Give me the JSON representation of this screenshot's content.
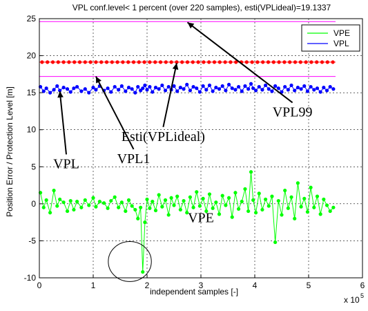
{
  "chart_data": {
    "type": "line",
    "title": "VPL conf.level< 1 percent (over 220 samples), esti(VPLideal)=19.1337",
    "xlabel": "independent samples [-]",
    "ylabel": "Position Error / Protection Level [m]",
    "x_exponent_label": "x 10",
    "x_exponent_power": "5",
    "xlim": [
      0,
      6
    ],
    "ylim": [
      -10,
      25
    ],
    "x_ticks": [
      "0",
      "1",
      "2",
      "3",
      "4",
      "5",
      "6"
    ],
    "y_ticks": [
      "-10",
      "-5",
      "0",
      "5",
      "10",
      "15",
      "20",
      "25"
    ],
    "grid": "dashed",
    "legend": {
      "position": "top-right",
      "entries": [
        {
          "label": "VPE",
          "color": "#00ff00"
        },
        {
          "label": "VPL",
          "color": "#0000ff"
        }
      ]
    },
    "reference_lines": [
      {
        "name": "VPL99",
        "y": 24.6,
        "x_range": [
          0,
          5.5
        ],
        "color": "#ff00ff"
      },
      {
        "name": "VPL1",
        "y": 17.2,
        "x_range": [
          0,
          5.5
        ],
        "color": "#ff00ff"
      },
      {
        "name": "Esti(VPLideal)",
        "y": 19.13,
        "x_range": [
          0,
          5.5
        ],
        "color": "#ff0000"
      }
    ],
    "series": [
      {
        "name": "VPE",
        "color": "#00ff00",
        "x": [
          0.02,
          0.08,
          0.13,
          0.2,
          0.27,
          0.33,
          0.38,
          0.45,
          0.52,
          0.58,
          0.64,
          0.7,
          0.78,
          0.85,
          0.92,
          1.0,
          1.05,
          1.12,
          1.2,
          1.27,
          1.33,
          1.4,
          1.47,
          1.53,
          1.6,
          1.66,
          1.72,
          1.78,
          1.83,
          1.88,
          1.92,
          1.96,
          2.0,
          2.05,
          2.1,
          2.16,
          2.22,
          2.28,
          2.34,
          2.4,
          2.45,
          2.5,
          2.56,
          2.62,
          2.68,
          2.74,
          2.8,
          2.86,
          2.92,
          2.98,
          3.04,
          3.1,
          3.16,
          3.22,
          3.28,
          3.34,
          3.4,
          3.46,
          3.52,
          3.58,
          3.64,
          3.7,
          3.76,
          3.82,
          3.88,
          3.93,
          3.97,
          4.02,
          4.08,
          4.14,
          4.2,
          4.26,
          4.32,
          4.38,
          4.44,
          4.5,
          4.56,
          4.62,
          4.68,
          4.74,
          4.8,
          4.86,
          4.92,
          4.98,
          5.04,
          5.1,
          5.16,
          5.22,
          5.28,
          5.34,
          5.4,
          5.46
        ],
        "values": [
          1.5,
          -0.5,
          0.5,
          -1.2,
          1.8,
          -0.3,
          0.6,
          0.2,
          -1.0,
          0.4,
          -0.8,
          0.3,
          -0.5,
          0.5,
          -0.2,
          0.8,
          -0.4,
          0.3,
          0.1,
          -0.6,
          0.4,
          0.9,
          -0.5,
          0.2,
          -1.0,
          0.5,
          -0.3,
          -0.8,
          -2.0,
          -0.5,
          -9.2,
          -2.5,
          0.6,
          -0.6,
          0.3,
          -0.9,
          1.2,
          -0.4,
          0.5,
          -1.5,
          0.8,
          -0.2,
          1.0,
          -0.8,
          0.4,
          -1.2,
          0.9,
          -0.5,
          1.6,
          -0.3,
          0.7,
          -1.0,
          1.3,
          -0.6,
          0.2,
          -1.4,
          1.1,
          -0.2,
          0.8,
          -1.8,
          1.5,
          -0.7,
          0.3,
          2.0,
          -1.0,
          4.3,
          0.5,
          -1.2,
          1.4,
          -0.8,
          0.6,
          -0.3,
          1.0,
          -5.2,
          0.4,
          -1.5,
          1.8,
          -0.6,
          0.9,
          -2.0,
          2.8,
          -0.4,
          0.7,
          -1.1,
          2.2,
          -0.5,
          1.0,
          -1.4,
          0.6,
          -0.2,
          -1.0,
          -0.5
        ]
      },
      {
        "name": "VPL",
        "color": "#0000ff",
        "x": [
          0.02,
          0.08,
          0.13,
          0.2,
          0.27,
          0.33,
          0.38,
          0.45,
          0.52,
          0.58,
          0.64,
          0.7,
          0.78,
          0.85,
          0.92,
          1.0,
          1.05,
          1.12,
          1.2,
          1.27,
          1.33,
          1.4,
          1.47,
          1.53,
          1.6,
          1.66,
          1.72,
          1.78,
          1.83,
          1.88,
          1.92,
          1.96,
          2.0,
          2.05,
          2.1,
          2.16,
          2.22,
          2.28,
          2.34,
          2.4,
          2.45,
          2.5,
          2.56,
          2.62,
          2.68,
          2.74,
          2.8,
          2.86,
          2.92,
          2.98,
          3.04,
          3.1,
          3.16,
          3.22,
          3.28,
          3.34,
          3.4,
          3.46,
          3.52,
          3.58,
          3.64,
          3.7,
          3.76,
          3.82,
          3.88,
          3.93,
          3.97,
          4.02,
          4.08,
          4.14,
          4.2,
          4.26,
          4.32,
          4.38,
          4.44,
          4.5,
          4.56,
          4.62,
          4.68,
          4.74,
          4.8,
          4.86,
          4.92,
          4.98,
          5.04,
          5.1,
          5.16,
          5.22,
          5.28,
          5.34,
          5.4,
          5.46
        ],
        "values": [
          15.8,
          15.2,
          15.6,
          15.0,
          15.4,
          15.9,
          15.3,
          15.7,
          15.5,
          15.1,
          15.6,
          15.8,
          15.2,
          15.5,
          15.0,
          15.7,
          15.4,
          15.9,
          15.3,
          15.6,
          15.1,
          15.8,
          15.4,
          15.9,
          15.2,
          15.7,
          15.5,
          15.0,
          15.8,
          15.3,
          15.6,
          16.0,
          15.4,
          15.8,
          15.1,
          15.7,
          15.5,
          16.0,
          15.3,
          15.8,
          15.4,
          15.9,
          15.2,
          15.7,
          15.5,
          16.1,
          15.3,
          15.8,
          15.6,
          15.1,
          15.9,
          15.4,
          16.0,
          15.2,
          15.7,
          15.5,
          15.9,
          15.3,
          16.1,
          15.6,
          15.4,
          15.8,
          15.2,
          15.9,
          15.5,
          16.2,
          15.6,
          15.3,
          15.8,
          15.4,
          16.0,
          15.5,
          15.2,
          15.9,
          15.6,
          15.1,
          15.8,
          15.4,
          16.0,
          15.3,
          15.7,
          15.5,
          15.9,
          15.2,
          15.8,
          15.4,
          15.6,
          15.1,
          15.7,
          15.3,
          15.8,
          15.5
        ]
      },
      {
        "name": "Esti(VPLideal)",
        "color": "#ff0000",
        "x": [
          0.05,
          0.15,
          0.25,
          0.35,
          0.45,
          0.55,
          0.65,
          0.75,
          0.85,
          0.95,
          1.05,
          1.15,
          1.25,
          1.35,
          1.45,
          1.55,
          1.65,
          1.75,
          1.85,
          1.95,
          2.05,
          2.15,
          2.25,
          2.35,
          2.45,
          2.55,
          2.65,
          2.75,
          2.85,
          2.95,
          3.05,
          3.15,
          3.25,
          3.35,
          3.45,
          3.55,
          3.65,
          3.75,
          3.85,
          3.95,
          4.05,
          4.15,
          4.25,
          4.35,
          4.45,
          4.55,
          4.65,
          4.75,
          4.85,
          4.95,
          5.05,
          5.15,
          5.25,
          5.35,
          5.45
        ],
        "values": [
          19.13,
          19.13,
          19.13,
          19.13,
          19.13,
          19.13,
          19.13,
          19.13,
          19.13,
          19.13,
          19.13,
          19.13,
          19.13,
          19.13,
          19.13,
          19.13,
          19.13,
          19.13,
          19.13,
          19.13,
          19.13,
          19.13,
          19.13,
          19.13,
          19.13,
          19.13,
          19.13,
          19.13,
          19.13,
          19.13,
          19.13,
          19.13,
          19.13,
          19.13,
          19.13,
          19.13,
          19.13,
          19.13,
          19.13,
          19.13,
          19.13,
          19.13,
          19.13,
          19.13,
          19.13,
          19.13,
          19.13,
          19.13,
          19.13,
          19.13,
          19.13,
          19.13,
          19.13,
          19.13,
          19.13
        ]
      }
    ],
    "annotations": [
      {
        "label": "VPL99",
        "text_x": 4.7,
        "text_y": 11.8,
        "arrow_to_x": 2.75,
        "arrow_to_y": 24.5
      },
      {
        "label": "Esti(VPLideal)",
        "text_x": 2.3,
        "text_y": 8.5,
        "arrow_to_x": 2.55,
        "arrow_to_y": 19.0
      },
      {
        "label": "VPL1",
        "text_x": 1.75,
        "text_y": 5.5,
        "arrow_to_x": 1.05,
        "arrow_to_y": 17.2
      },
      {
        "label": "VPL",
        "text_x": 0.5,
        "text_y": 4.8,
        "arrow_to_x": 0.38,
        "arrow_to_y": 15.2
      },
      {
        "label": "VPE",
        "text_x": 3.0,
        "text_y": -2.5
      }
    ],
    "highlight_ellipse": {
      "cx": 1.68,
      "cy": -7.8,
      "rx": 0.4,
      "ry": 2.7
    }
  }
}
